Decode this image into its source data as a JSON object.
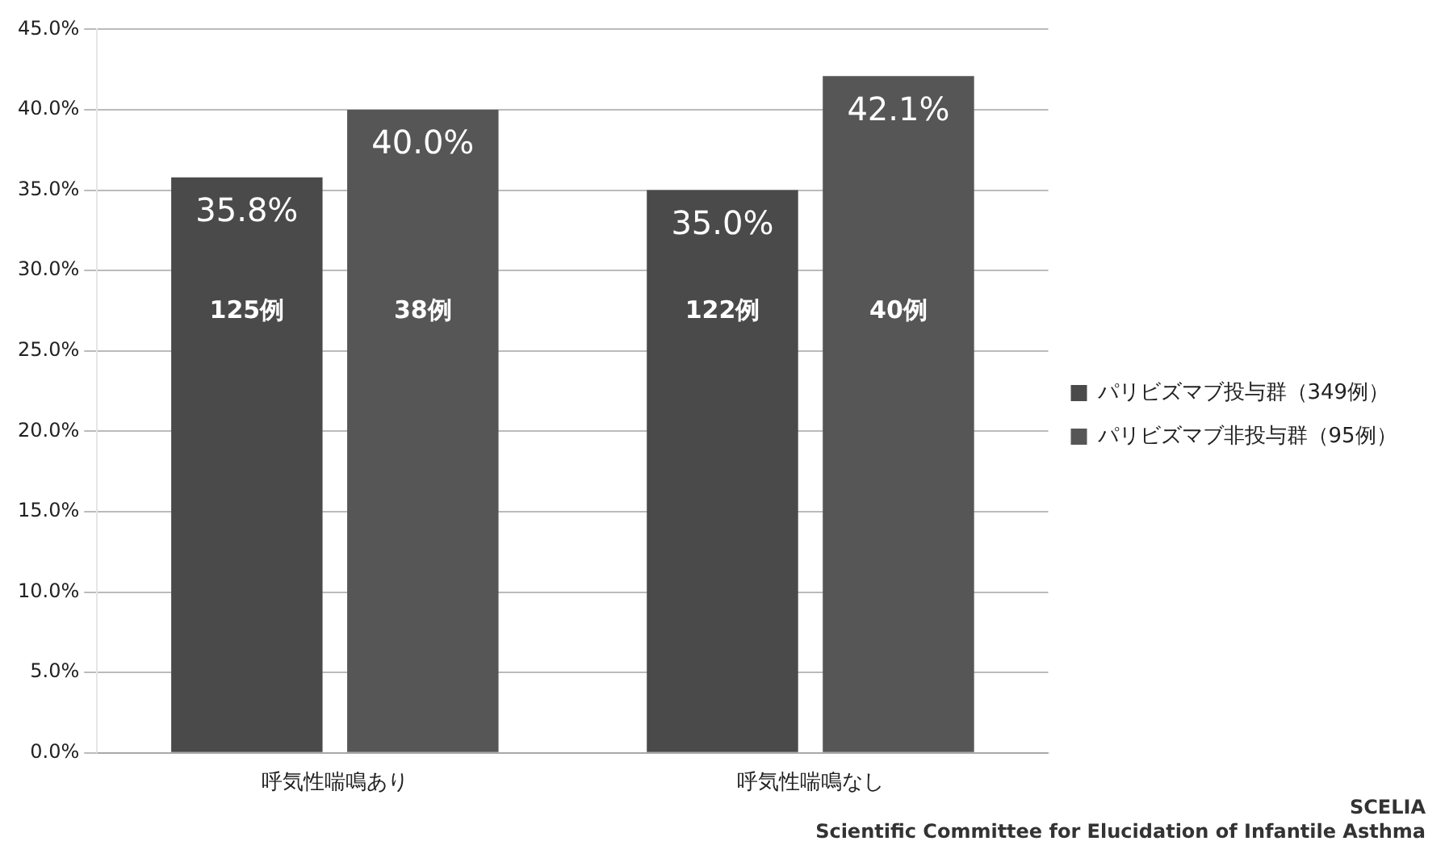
{
  "chart_data": {
    "type": "bar",
    "categories": [
      "呼気性喘鳴あり",
      "呼気性喘鳴なし"
    ],
    "series": [
      {
        "name": "パリビズマブ投与群（349例）",
        "color": "#4a4a4a",
        "values": [
          35.8,
          35.0
        ],
        "value_labels": [
          "35.8%",
          "35.0%"
        ]
      },
      {
        "name": "パリビズマブ非投与群（95例）",
        "color": "#565656",
        "values": [
          40.0,
          42.1
        ],
        "value_labels": [
          "40.0%",
          "42.1%"
        ]
      }
    ],
    "ylim": [
      0,
      45
    ],
    "yticks": [
      {
        "value": 0,
        "label": "0.0%"
      },
      {
        "value": 5,
        "label": "5.0%"
      },
      {
        "value": 10,
        "label": "10.0%"
      },
      {
        "value": 15,
        "label": "15.0%"
      },
      {
        "value": 20,
        "label": "20.0%"
      },
      {
        "value": 25,
        "label": "25.0%"
      },
      {
        "value": 30,
        "label": "30.0%"
      },
      {
        "value": 35,
        "label": "35.0%"
      },
      {
        "value": 40,
        "label": "40.0%"
      },
      {
        "value": 45,
        "label": "45.0%"
      }
    ],
    "grid": "y",
    "legend": "right",
    "annotations": [
      "125例",
      "38例",
      "122例",
      "40例",
      "SCELIA",
      "Scientific Committee for Elucidation of Infantile Asthma"
    ]
  }
}
